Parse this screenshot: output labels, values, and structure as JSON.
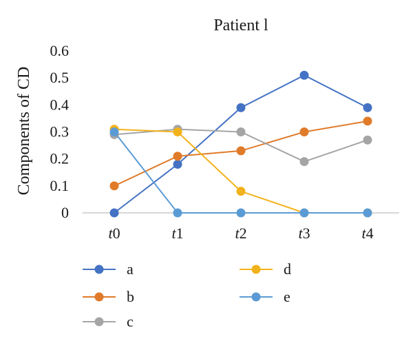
{
  "chart_data": {
    "type": "line",
    "title": "Patient l",
    "xlabel": "",
    "ylabel": "Components of CD",
    "categories": [
      "t0",
      "t1",
      "t2",
      "t3",
      "t4"
    ],
    "ylim": [
      0,
      0.6
    ],
    "yticks": [
      "0",
      "0.1",
      "0.2",
      "0.3",
      "0.4",
      "0.5",
      "0.6"
    ],
    "grid": false,
    "legend_position": "bottom",
    "series": [
      {
        "name": "a",
        "color": "#4472C4",
        "values": [
          0,
          0.18,
          0.39,
          0.51,
          0.39
        ]
      },
      {
        "name": "b",
        "color": "#E07B2A",
        "values": [
          0.1,
          0.21,
          0.23,
          0.3,
          0.34
        ]
      },
      {
        "name": "c",
        "color": "#A5A5A5",
        "values": [
          0.29,
          0.31,
          0.3,
          0.19,
          0.27
        ]
      },
      {
        "name": "d",
        "color": "#F2B21B",
        "values": [
          0.31,
          0.3,
          0.08,
          0,
          0
        ]
      },
      {
        "name": "e",
        "color": "#5B9BD5",
        "values": [
          0.3,
          0,
          0,
          0,
          0
        ]
      }
    ]
  }
}
